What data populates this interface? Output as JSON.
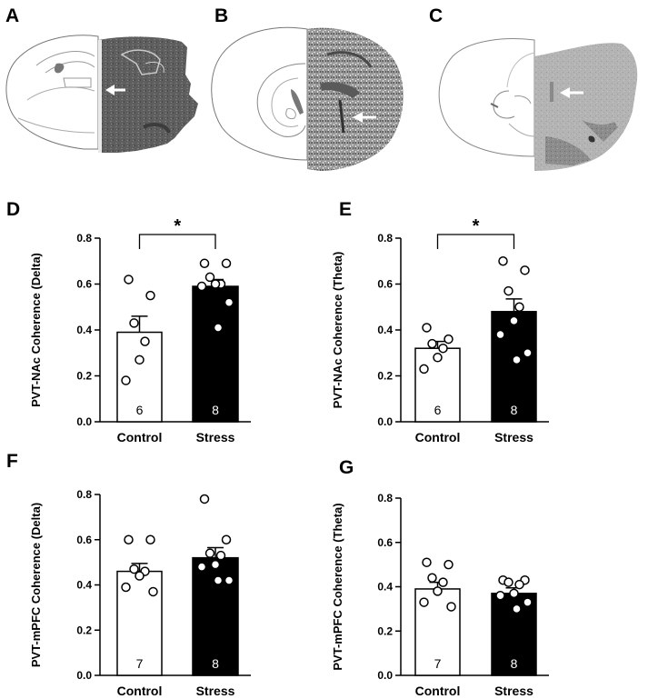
{
  "panel_labels": {
    "A": "A",
    "B": "B",
    "C": "C"
  },
  "images": [
    {
      "name": "brain-section-a",
      "description": "coronal brain section with electrode track"
    },
    {
      "name": "brain-section-b",
      "description": "coronal brain section with electrode track"
    },
    {
      "name": "brain-section-c",
      "description": "coronal brain section with electrode track"
    }
  ],
  "colors": {
    "control_bar": "#ffffff",
    "stress_bar": "#000000",
    "axis": "#000000",
    "tissue": "#6e6e6e"
  },
  "chart_data": [
    {
      "id": "D",
      "label": "D",
      "type": "bar",
      "categories": [
        "Control",
        "Stress"
      ],
      "values": [
        0.39,
        0.59
      ],
      "sem": [
        0.07,
        0.03
      ],
      "n": [
        "6",
        "8"
      ],
      "points": [
        [
          0.62,
          0.55,
          0.43,
          0.35,
          0.27,
          0.18
        ],
        [
          0.69,
          0.69,
          0.63,
          0.6,
          0.6,
          0.59,
          0.52,
          0.41
        ]
      ],
      "ylabel": "PVT-NAc Coherence (Delta)",
      "ylim": [
        0,
        0.8
      ],
      "yticks": [
        "0.0",
        "0.2",
        "0.4",
        "0.6",
        "0.8"
      ],
      "significance": "*"
    },
    {
      "id": "E",
      "label": "E",
      "type": "bar",
      "categories": [
        "Control",
        "Stress"
      ],
      "values": [
        0.32,
        0.48
      ],
      "sem": [
        0.03,
        0.055
      ],
      "n": [
        "6",
        "8"
      ],
      "points": [
        [
          0.41,
          0.36,
          0.34,
          0.32,
          0.28,
          0.23
        ],
        [
          0.7,
          0.66,
          0.57,
          0.5,
          0.44,
          0.38,
          0.3,
          0.27
        ]
      ],
      "ylabel": "PVT-NAc Coherence (Theta)",
      "ylim": [
        0,
        0.8
      ],
      "yticks": [
        "0.0",
        "0.2",
        "0.4",
        "0.6",
        "0.8"
      ],
      "significance": "*"
    },
    {
      "id": "F",
      "label": "F",
      "type": "bar",
      "categories": [
        "Control",
        "Stress"
      ],
      "values": [
        0.46,
        0.52
      ],
      "sem": [
        0.035,
        0.045
      ],
      "n": [
        "7",
        "8"
      ],
      "points": [
        [
          0.6,
          0.6,
          0.47,
          0.46,
          0.44,
          0.39,
          0.37
        ],
        [
          0.78,
          0.6,
          0.54,
          0.53,
          0.49,
          0.48,
          0.42,
          0.42
        ]
      ],
      "ylabel": "PVT-mPFC Coherence (Delta)",
      "ylim": [
        0,
        0.8
      ],
      "yticks": [
        "0.0",
        "0.2",
        "0.4",
        "0.6",
        "0.8"
      ],
      "significance": ""
    },
    {
      "id": "G",
      "label": "G",
      "type": "bar",
      "categories": [
        "Control",
        "Stress"
      ],
      "values": [
        0.39,
        0.37
      ],
      "sem": [
        0.03,
        0.025
      ],
      "n": [
        "7",
        "8"
      ],
      "points": [
        [
          0.51,
          0.5,
          0.44,
          0.42,
          0.38,
          0.33,
          0.31
        ],
        [
          0.43,
          0.43,
          0.42,
          0.41,
          0.37,
          0.36,
          0.33,
          0.3
        ]
      ],
      "ylabel": "PVT-mPFC Coherence  (Theta)",
      "ylim": [
        0,
        0.8
      ],
      "yticks": [
        "0.0",
        "0.2",
        "0.4",
        "0.6",
        "0.8"
      ],
      "significance": ""
    }
  ]
}
